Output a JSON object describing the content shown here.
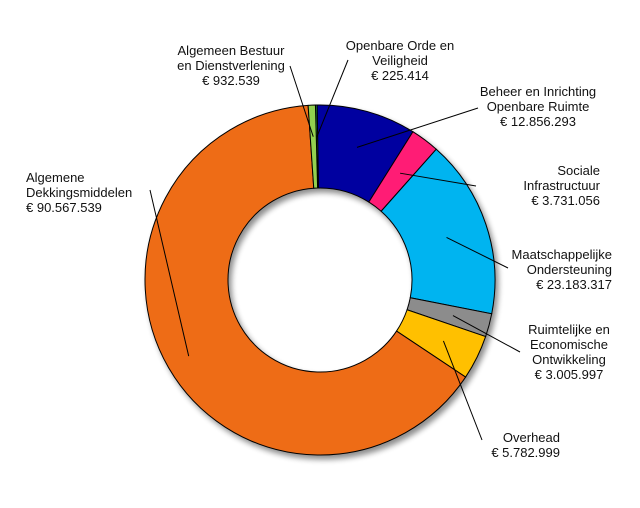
{
  "chart_data": {
    "type": "donut",
    "title": "",
    "currency": "€",
    "segments": [
      {
        "name_lines": [
          "Openbare Orde en",
          "Veiligheid"
        ],
        "value_text": "€ 225.414",
        "value": 225414,
        "color": "#1e9b3a"
      },
      {
        "name_lines": [
          "Beheer en Inrichting",
          "Openbare Ruimte"
        ],
        "value_text": "€ 12.856.293",
        "value": 12856293,
        "color": "#0000a0"
      },
      {
        "name_lines": [
          "Sociale",
          "Infrastructuur"
        ],
        "value_text": "€ 3.731.056",
        "value": 3731056,
        "color": "#ff1a75"
      },
      {
        "name_lines": [
          "Maatschappelijke",
          "Ondersteuning"
        ],
        "value_text": "€ 23.183.317",
        "value": 23183317,
        "color": "#00b4f0"
      },
      {
        "name_lines": [
          "Ruimtelijke en",
          "Economische",
          "Ontwikkeling"
        ],
        "value_text": "€ 3.005.997",
        "value": 3005997,
        "color": "#8c8c8c"
      },
      {
        "name_lines": [
          "Overhead"
        ],
        "value_text": "€ 5.782.999",
        "value": 5782999,
        "color": "#ffc000"
      },
      {
        "name_lines": [
          "Algemene",
          "Dekkingsmiddelen"
        ],
        "value_text": "€ 90.567.539",
        "value": 90567539,
        "color": "#ee6c17"
      },
      {
        "name_lines": [
          "Algemeen  Bestuur",
          "en Dienstverlening"
        ],
        "value_text": "€ 932.539",
        "value": 932539,
        "color": "#93d050"
      }
    ]
  }
}
